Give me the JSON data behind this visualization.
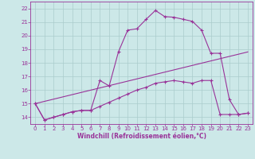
{
  "xlabel": "Windchill (Refroidissement éolien,°C)",
  "background_color": "#cce8e8",
  "grid_color": "#aacccc",
  "line_color": "#993399",
  "xlim": [
    -0.5,
    23.5
  ],
  "ylim": [
    13.5,
    22.5
  ],
  "xticks": [
    0,
    1,
    2,
    3,
    4,
    5,
    6,
    7,
    8,
    9,
    10,
    11,
    12,
    13,
    14,
    15,
    16,
    17,
    18,
    19,
    20,
    21,
    22,
    23
  ],
  "yticks": [
    14,
    15,
    16,
    17,
    18,
    19,
    20,
    21,
    22
  ],
  "curve1_x": [
    0,
    1,
    2,
    3,
    4,
    5,
    6,
    7,
    8,
    9,
    10,
    11,
    12,
    13,
    14,
    15,
    16,
    17,
    18,
    19,
    20,
    21,
    22,
    23
  ],
  "curve1_y": [
    15.0,
    13.8,
    14.0,
    14.2,
    14.4,
    14.5,
    14.5,
    16.7,
    16.3,
    18.8,
    20.4,
    20.5,
    21.2,
    21.85,
    21.4,
    21.35,
    21.2,
    21.05,
    20.4,
    18.7,
    18.7,
    15.3,
    14.2,
    14.3
  ],
  "curve2_x": [
    0,
    1,
    2,
    3,
    4,
    5,
    6,
    7,
    8,
    9,
    10,
    11,
    12,
    13,
    14,
    15,
    16,
    17,
    18,
    19,
    20,
    21,
    22,
    23
  ],
  "curve2_y": [
    15.0,
    13.8,
    14.0,
    14.2,
    14.4,
    14.5,
    14.5,
    14.8,
    15.1,
    15.4,
    15.7,
    16.0,
    16.2,
    16.5,
    16.6,
    16.7,
    16.6,
    16.5,
    16.7,
    16.7,
    14.2,
    14.2,
    14.2,
    14.3
  ],
  "curve3_x": [
    0,
    23
  ],
  "curve3_y": [
    15.0,
    18.8
  ]
}
